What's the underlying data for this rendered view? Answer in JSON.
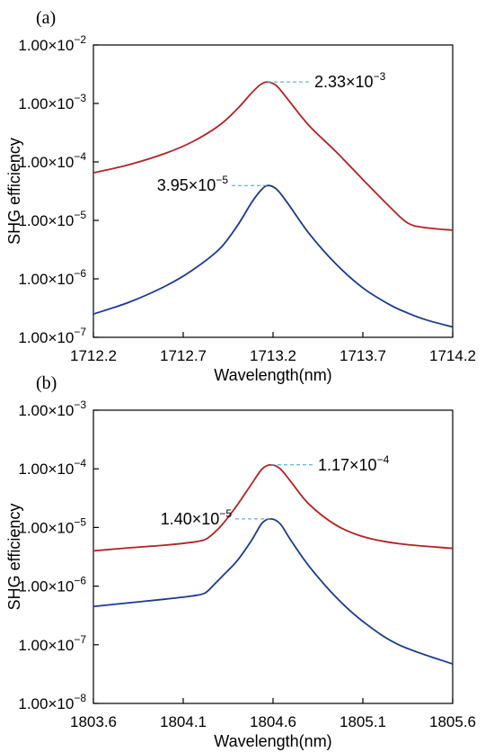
{
  "chart_data": [
    {
      "type": "line",
      "panel_label": "(a)",
      "xlabel": "Wavelength(nm)",
      "ylabel": "SHG efficiency",
      "y_scale": "log",
      "xlim": [
        1712.2,
        1714.2
      ],
      "ylim": [
        1e-07,
        0.01
      ],
      "x_ticks": [
        1712.2,
        1712.7,
        1713.2,
        1713.7,
        1714.2
      ],
      "x_tick_labels": [
        "1712.2",
        "1712.7",
        "1713.2",
        "1713.7",
        "1714.2"
      ],
      "y_ticks": [
        {
          "value": 1e-07,
          "mant": "1.00×10",
          "exp": "−7"
        },
        {
          "value": 1e-06,
          "mant": "1.00×10",
          "exp": "−6"
        },
        {
          "value": 1e-05,
          "mant": "1.00×10",
          "exp": "−5"
        },
        {
          "value": 0.0001,
          "mant": "1.00×10",
          "exp": "−4"
        },
        {
          "value": 0.001,
          "mant": "1.00×10",
          "exp": "−3"
        },
        {
          "value": 0.01,
          "mant": "1.00×10",
          "exp": "−2"
        }
      ],
      "series": [
        {
          "color": "#b22222",
          "x": [
            1712.2,
            1712.4,
            1712.6,
            1712.75,
            1712.9,
            1713.0,
            1713.08,
            1713.13,
            1713.17,
            1713.22,
            1713.28,
            1713.4,
            1713.55,
            1713.7,
            1713.85,
            1713.95,
            1714.05,
            1714.2
          ],
          "y": [
            6.5e-05,
            9e-05,
            0.00014,
            0.00022,
            0.00042,
            0.0008,
            0.0015,
            0.0021,
            0.00233,
            0.002,
            0.0012,
            0.00042,
            0.00015,
            5e-05,
            1.7e-05,
            9e-06,
            7.5e-06,
            6.8e-06
          ]
        },
        {
          "color": "#1a3a8f",
          "x": [
            1712.2,
            1712.4,
            1712.6,
            1712.75,
            1712.9,
            1713.0,
            1713.08,
            1713.13,
            1713.17,
            1713.22,
            1713.28,
            1713.4,
            1713.55,
            1713.7,
            1713.85,
            1713.95,
            1714.05,
            1714.2
          ],
          "y": [
            2.5e-07,
            4e-07,
            7.5e-07,
            1.4e-06,
            3.2e-06,
            8e-06,
            2e-05,
            3.2e-05,
            3.95e-05,
            3.4e-05,
            2e-05,
            6e-06,
            1.8e-06,
            7e-07,
            3.6e-07,
            2.6e-07,
            2e-07,
            1.5e-07
          ]
        }
      ],
      "annotations": [
        {
          "mant": "2.33×10",
          "exp": "−3",
          "x": 1713.17,
          "y": 0.00233,
          "side": "right"
        },
        {
          "mant": "3.95×10",
          "exp": "−5",
          "x": 1713.17,
          "y": 3.95e-05,
          "side": "left"
        }
      ]
    },
    {
      "type": "line",
      "panel_label": "(b)",
      "xlabel": "Wavelength(nm)",
      "ylabel": "SHG efficiency",
      "y_scale": "log",
      "xlim": [
        1803.6,
        1805.6
      ],
      "ylim": [
        1e-08,
        0.001
      ],
      "x_ticks": [
        1803.6,
        1804.1,
        1804.6,
        1805.1,
        1805.6
      ],
      "x_tick_labels": [
        "1803.6",
        "1804.1",
        "1804.6",
        "1805.1",
        "1805.6"
      ],
      "y_ticks": [
        {
          "value": 1e-08,
          "mant": "1.00×10",
          "exp": "−8"
        },
        {
          "value": 1e-07,
          "mant": "1.00×10",
          "exp": "−7"
        },
        {
          "value": 1e-06,
          "mant": "1.00×10",
          "exp": "−6"
        },
        {
          "value": 1e-05,
          "mant": "1.00×10",
          "exp": "−5"
        },
        {
          "value": 0.0001,
          "mant": "1.00×10",
          "exp": "−4"
        },
        {
          "value": 0.001,
          "mant": "1.00×10",
          "exp": "−3"
        }
      ],
      "series": [
        {
          "color": "#b22222",
          "x": [
            1803.6,
            1803.8,
            1804.0,
            1804.15,
            1804.22,
            1804.27,
            1804.32,
            1804.4,
            1804.48,
            1804.54,
            1804.59,
            1804.64,
            1804.7,
            1804.8,
            1804.95,
            1805.1,
            1805.3,
            1805.6
          ],
          "y": [
            4e-06,
            4.5e-06,
            5e-06,
            5.6e-06,
            6.2e-06,
            8e-06,
            1.15e-05,
            2.4e-05,
            5.5e-05,
            0.0001,
            0.000117,
            0.0001,
            6e-05,
            2.5e-05,
            1.1e-05,
            7e-06,
            5.3e-06,
            4.4e-06
          ]
        },
        {
          "color": "#1a3a8f",
          "x": [
            1803.6,
            1803.8,
            1804.0,
            1804.15,
            1804.22,
            1804.27,
            1804.32,
            1804.4,
            1804.48,
            1804.54,
            1804.59,
            1804.64,
            1804.7,
            1804.8,
            1804.95,
            1805.1,
            1805.3,
            1805.6
          ],
          "y": [
            4.5e-07,
            5.2e-07,
            6e-07,
            6.8e-07,
            7.6e-07,
            1.05e-06,
            1.5e-06,
            2.7e-06,
            6e-06,
            1.2e-05,
            1.4e-05,
            1.15e-05,
            6e-06,
            2.2e-06,
            6.5e-07,
            2.5e-07,
            1e-07,
            4.7e-08
          ]
        }
      ],
      "annotations": [
        {
          "mant": "1.17×10",
          "exp": "−4",
          "x": 1804.59,
          "y": 0.000117,
          "side": "right"
        },
        {
          "mant": "1.40×10",
          "exp": "−5",
          "x": 1804.59,
          "y": 1.4e-05,
          "side": "left"
        }
      ]
    }
  ]
}
